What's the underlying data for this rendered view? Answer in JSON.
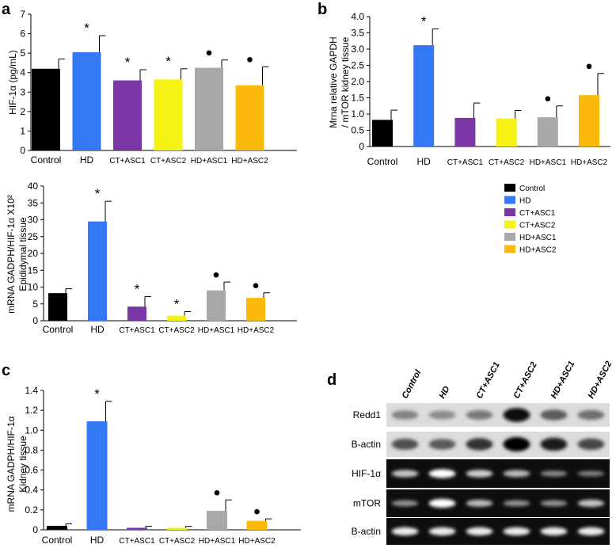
{
  "colors": {
    "Control": "#000000",
    "HD": "#3478f6",
    "CT+ASC1": "#7a36a4",
    "CT+ASC2": "#f6f213",
    "HD+ASC1": "#a8a8a8",
    "HD+ASC2": "#fbb90c"
  },
  "legend": {
    "items": [
      "Control",
      "HD",
      "CT+ASC1",
      "CT+ASC2",
      "HD+ASC1",
      "HD+ASC2"
    ]
  },
  "chart_data": [
    {
      "panel": "a",
      "type": "bar",
      "categories": [
        "Control",
        "HD",
        "CT+ASC1",
        "CT+ASC2",
        "HD+ASC1",
        "HD+ASC2"
      ],
      "values": [
        4.2,
        5.05,
        3.6,
        3.65,
        4.25,
        3.35
      ],
      "errors": [
        0.5,
        0.85,
        0.55,
        0.55,
        0.4,
        0.95
      ],
      "markers": [
        "",
        "*",
        "*",
        "*",
        "●",
        "●"
      ],
      "ylabel": "HIF-1α (pg/mL)",
      "ylim": [
        0,
        7
      ],
      "yticks": [
        "0",
        "1",
        "2",
        "3",
        "4",
        "5",
        "6",
        "7"
      ]
    },
    {
      "panel": "b",
      "type": "bar",
      "categories": [
        "Control",
        "HD",
        "CT+ASC1",
        "CT+ASC2",
        "HD+ASC1",
        "HD+ASC2"
      ],
      "values": [
        0.82,
        3.12,
        0.88,
        0.86,
        0.9,
        1.58
      ],
      "errors": [
        0.3,
        0.5,
        0.46,
        0.25,
        0.35,
        0.67
      ],
      "markers": [
        "",
        "*",
        "",
        "",
        "●",
        "●"
      ],
      "ylabel_lines": [
        "Mrna relative GAPDH",
        "/ mTOR kidney tissue"
      ],
      "ylim": [
        0,
        4.0
      ],
      "yticks": [
        "0",
        "0.5",
        "1.0",
        "1.5",
        "2.0",
        "2.5",
        "3.0",
        "3.5",
        "4.0"
      ]
    },
    {
      "panel": "a2",
      "type": "bar",
      "categories": [
        "Control",
        "HD",
        "CT+ASC1",
        "CT+ASC2",
        "HD+ASC1",
        "HD+ASC2"
      ],
      "values": [
        8.2,
        29.5,
        4.2,
        1.5,
        9.0,
        6.8
      ],
      "errors": [
        1.3,
        6.0,
        3.0,
        1.2,
        2.5,
        1.5
      ],
      "markers": [
        "",
        "*",
        "*",
        "*",
        "●",
        "●"
      ],
      "ylabel_lines": [
        "mRNA GADPH/HIF-1α X10²",
        "Epididymal tissue"
      ],
      "ylim": [
        0,
        40
      ],
      "yticks": [
        "0",
        "5",
        "10",
        "15",
        "20",
        "25",
        "30",
        "35",
        "40"
      ]
    },
    {
      "panel": "c",
      "type": "bar",
      "categories": [
        "Control",
        "HD",
        "CT+ASC1",
        "CT+ASC2",
        "HD+ASC1",
        "HD+ASC2"
      ],
      "values": [
        0.04,
        1.09,
        0.02,
        0.02,
        0.19,
        0.09
      ],
      "errors": [
        0.02,
        0.2,
        0.015,
        0.015,
        0.11,
        0.02
      ],
      "markers": [
        "",
        "*",
        "",
        "",
        "●",
        "●"
      ],
      "ylabel_lines": [
        "mRNA GADPH/HIF-1α",
        "Kidney tissue"
      ],
      "ylim": [
        0,
        1.4
      ],
      "yticks": [
        "0",
        "0.2",
        "0.4",
        "0.6",
        "0.8",
        "1.0",
        "1.2",
        "1.4"
      ]
    }
  ],
  "blot": {
    "letter": "d",
    "columns": [
      "Control",
      "HD",
      "CT+ASC1",
      "CT+ASC2",
      "HD+ASC1",
      "HD+ASC2"
    ],
    "rows": [
      {
        "label": "Redd1",
        "dark": false,
        "intensity": [
          0.35,
          0.3,
          0.4,
          0.95,
          0.55,
          0.45
        ]
      },
      {
        "label": "B-actin",
        "dark": false,
        "intensity": [
          0.6,
          0.55,
          0.75,
          1.0,
          0.85,
          0.65
        ]
      },
      {
        "label": "HIF-1α",
        "dark": true,
        "intensity": [
          0.7,
          1.0,
          0.75,
          0.65,
          0.4,
          0.35
        ]
      },
      {
        "label": "mTOR",
        "dark": true,
        "intensity": [
          0.45,
          1.0,
          0.65,
          0.45,
          0.45,
          0.7
        ]
      },
      {
        "label": "B-actin",
        "dark": true,
        "intensity": [
          0.9,
          0.9,
          0.9,
          0.9,
          0.9,
          0.9
        ]
      }
    ]
  },
  "panel_letters": {
    "a": "a",
    "b": "b",
    "c": "c",
    "d": "d"
  }
}
